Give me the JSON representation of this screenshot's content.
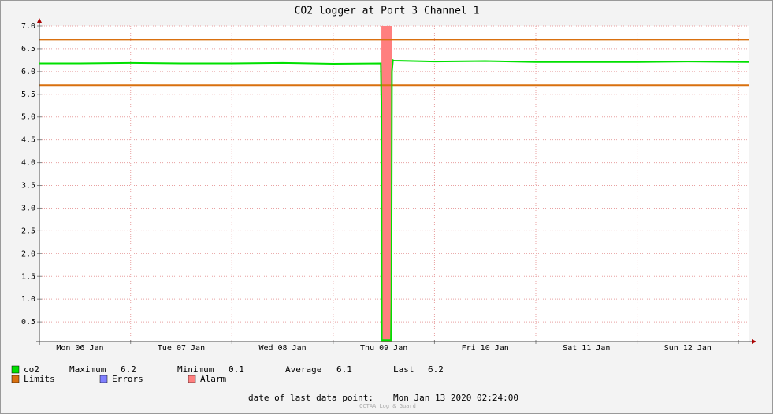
{
  "chart_data": {
    "type": "line",
    "title": "CO2 logger at Port 3 Channel 1",
    "series": [
      {
        "name": "co2",
        "color": "#00e000",
        "x": [
          6.1,
          6.5,
          7.0,
          7.5,
          8.0,
          8.5,
          9.0,
          9.47,
          9.476,
          9.48,
          9.49,
          9.57,
          9.575,
          9.58,
          9.59,
          9.6,
          10.0,
          10.5,
          11.0,
          11.5,
          12.0,
          12.5,
          13.1
        ],
        "values": [
          6.18,
          6.18,
          6.19,
          6.18,
          6.18,
          6.19,
          6.17,
          6.18,
          5.3,
          0.1,
          0.1,
          0.1,
          1.0,
          6.0,
          6.25,
          6.24,
          6.22,
          6.23,
          6.21,
          6.21,
          6.21,
          6.22,
          6.21
        ]
      }
    ],
    "xlim": [
      6.1,
      13.1
    ],
    "xticks": [
      {
        "value": 6.5,
        "label": "Mon 06 Jan"
      },
      {
        "value": 7.5,
        "label": "Tue 07 Jan"
      },
      {
        "value": 8.5,
        "label": "Wed 08 Jan"
      },
      {
        "value": 9.5,
        "label": "Thu 09 Jan"
      },
      {
        "value": 10.5,
        "label": "Fri 10 Jan"
      },
      {
        "value": 11.5,
        "label": "Sat 11 Jan"
      },
      {
        "value": 12.5,
        "label": "Sun 12 Jan"
      }
    ],
    "xgrid": [
      7,
      8,
      9,
      10,
      11,
      12,
      13
    ],
    "ylim": [
      0.07,
      7.0
    ],
    "yticks": [
      0.5,
      {
        "value": 1,
        "label": "1.0"
      },
      1.5,
      {
        "value": 2,
        "label": "2.0"
      },
      2.5,
      {
        "value": 3,
        "label": "3.0"
      },
      3.5,
      {
        "value": 4,
        "label": "4.0"
      },
      4.5,
      {
        "value": 5,
        "label": "5.0"
      },
      5.5,
      {
        "value": 6,
        "label": "6.0"
      },
      6.5,
      {
        "value": 7,
        "label": "7.0"
      }
    ],
    "grid": true,
    "limits": {
      "name": "Limits",
      "color": "#d9700f",
      "values": [
        5.7,
        6.7
      ]
    },
    "errors": {
      "name": "Errors",
      "color": "#7f7fff"
    },
    "alarm": {
      "name": "Alarm",
      "color": "#ff7f7f",
      "spans": [
        [
          9.476,
          9.577
        ]
      ]
    },
    "stats": [
      {
        "label": "Maximum",
        "value": 6.2
      },
      {
        "label": "Minimum",
        "value": 0.1
      },
      {
        "label": "Average",
        "value": 6.1
      },
      {
        "label": "Last",
        "value": 6.2
      }
    ],
    "footer": {
      "label": "date of last data point:",
      "value": "Mon Jan 13 2020 02:24:00"
    },
    "watermark": "OCTAA Log & Guard"
  }
}
